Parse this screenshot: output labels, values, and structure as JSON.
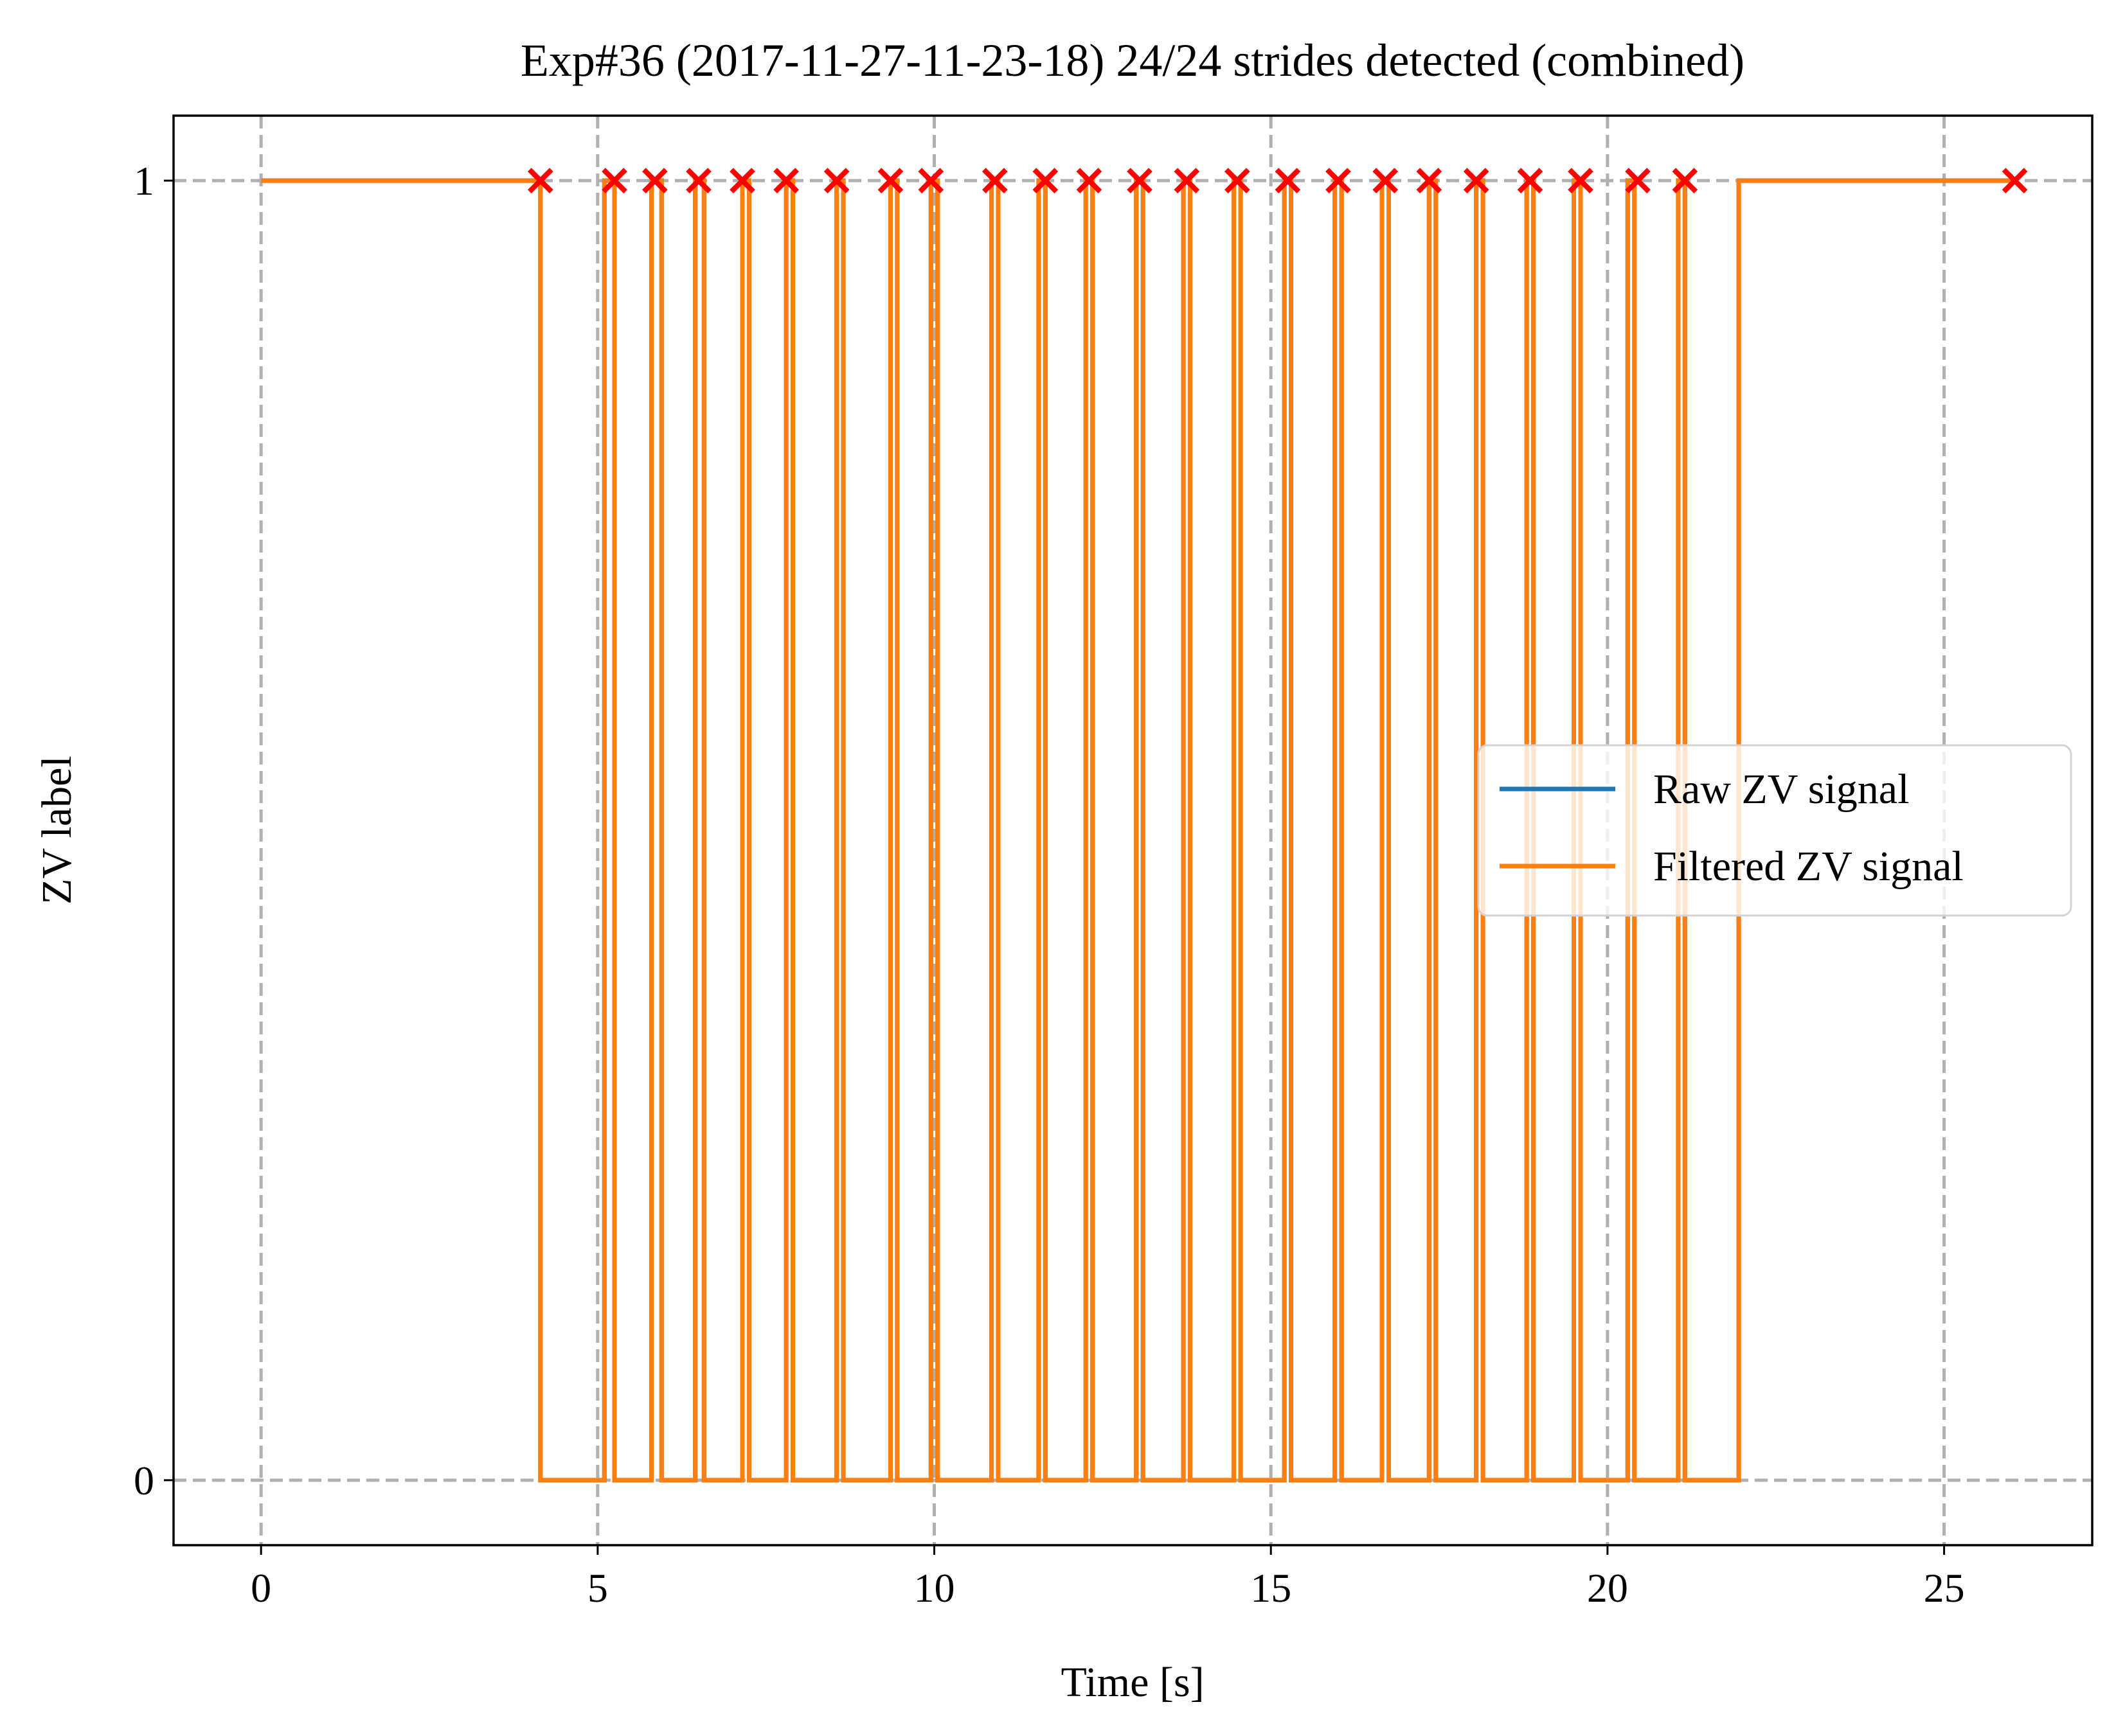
{
  "chart_data": {
    "type": "line",
    "title": "Exp#36 (2017-11-27-11-23-18) 24/24 strides detected (combined)",
    "xlabel": "Time [s]",
    "ylabel": "ZV label",
    "xlim": [
      -1.3,
      27.2
    ],
    "ylim": [
      -0.05,
      1.05
    ],
    "xticks": [
      0,
      5,
      10,
      15,
      20,
      25
    ],
    "xtick_labels": [
      "0",
      "5",
      "10",
      "15",
      "20",
      "25"
    ],
    "yticks": [
      0,
      1
    ],
    "ytick_labels": [
      "0",
      "1"
    ],
    "grid": true,
    "legend_position": "center-right",
    "series": [
      {
        "name": "Raw ZV signal",
        "color": "#1f77b4",
        "step_pairs": [
          [
            0,
            4.15
          ],
          [
            5.1,
            5.25
          ],
          [
            5.8,
            5.95
          ],
          [
            6.45,
            6.58
          ],
          [
            7.15,
            7.25
          ],
          [
            7.8,
            7.9
          ],
          [
            8.55,
            8.65
          ],
          [
            9.35,
            9.45
          ],
          [
            9.95,
            10.05
          ],
          [
            10.85,
            10.95
          ],
          [
            11.55,
            11.65
          ],
          [
            12.25,
            12.35
          ],
          [
            13.0,
            13.1
          ],
          [
            13.7,
            13.8
          ],
          [
            14.45,
            14.55
          ],
          [
            15.2,
            15.3
          ],
          [
            15.95,
            16.05
          ],
          [
            16.65,
            16.75
          ],
          [
            17.35,
            17.45
          ],
          [
            18.05,
            18.15
          ],
          [
            18.8,
            18.9
          ],
          [
            19.5,
            19.6
          ],
          [
            20.3,
            20.4
          ],
          [
            21.05,
            21.15
          ],
          [
            21.95,
            26.05
          ]
        ]
      },
      {
        "name": "Filtered ZV signal",
        "color": "#ff7f0e",
        "step_pairs": [
          [
            0,
            4.15
          ],
          [
            5.1,
            5.25
          ],
          [
            5.8,
            5.95
          ],
          [
            6.45,
            6.58
          ],
          [
            7.15,
            7.25
          ],
          [
            7.8,
            7.9
          ],
          [
            8.55,
            8.65
          ],
          [
            9.35,
            9.45
          ],
          [
            9.95,
            10.05
          ],
          [
            10.85,
            10.95
          ],
          [
            11.55,
            11.65
          ],
          [
            12.25,
            12.35
          ],
          [
            13.0,
            13.1
          ],
          [
            13.7,
            13.8
          ],
          [
            14.45,
            14.55
          ],
          [
            15.2,
            15.3
          ],
          [
            15.95,
            16.05
          ],
          [
            16.65,
            16.75
          ],
          [
            17.35,
            17.45
          ],
          [
            18.05,
            18.15
          ],
          [
            18.8,
            18.9
          ],
          [
            19.5,
            19.6
          ],
          [
            20.3,
            20.4
          ],
          [
            21.05,
            21.15
          ],
          [
            21.95,
            26.05
          ]
        ]
      }
    ],
    "stride_markers": {
      "color": "#ff0000",
      "y": 1,
      "x": [
        4.15,
        5.25,
        5.85,
        6.5,
        7.15,
        7.8,
        8.55,
        9.35,
        9.95,
        10.9,
        11.65,
        12.3,
        13.05,
        13.75,
        14.5,
        15.25,
        16.0,
        16.7,
        17.35,
        18.05,
        18.85,
        19.6,
        20.45,
        21.15,
        26.05
      ]
    }
  }
}
